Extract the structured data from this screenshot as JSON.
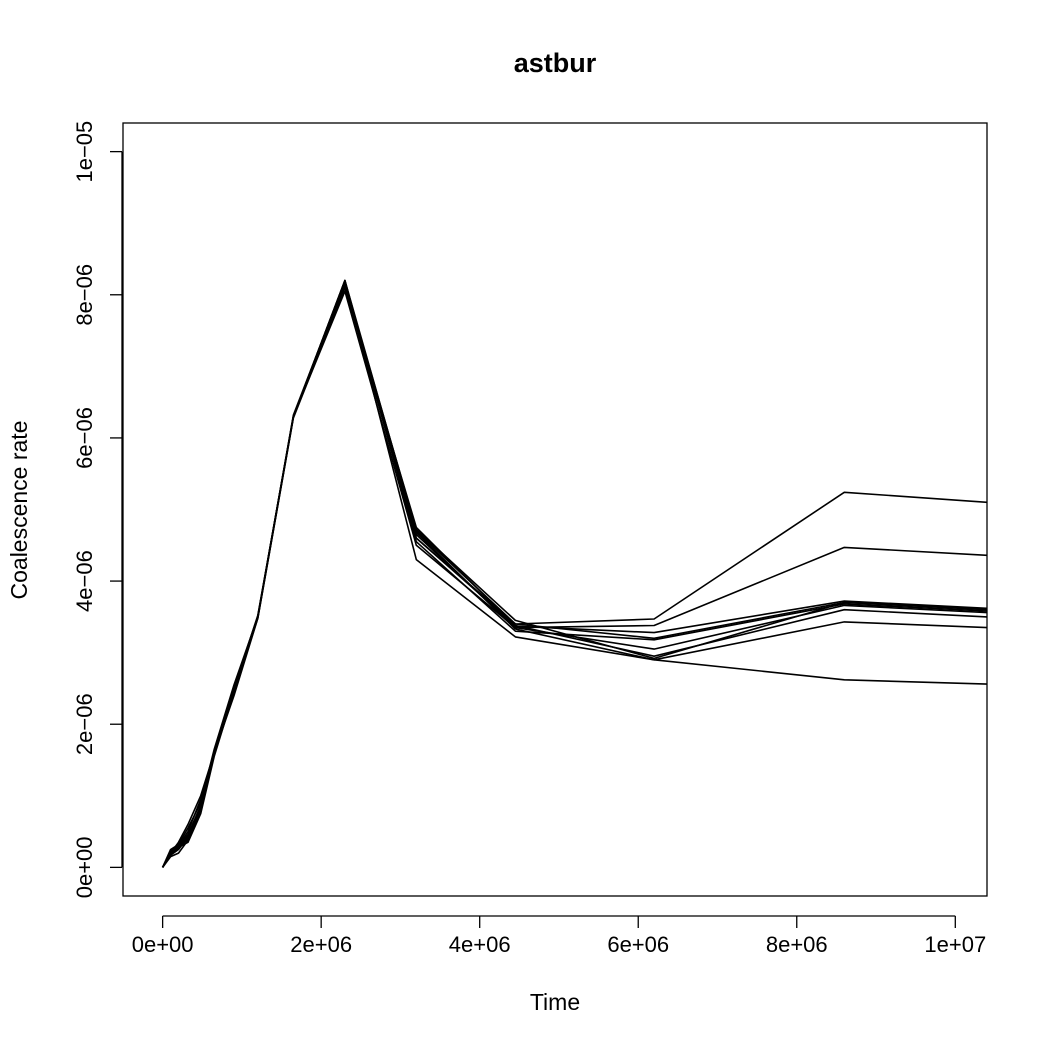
{
  "chart_data": {
    "type": "line",
    "title": "astbur",
    "xlabel": "Time",
    "ylabel": "Coalescence rate",
    "xlim": [
      -500000,
      10400000
    ],
    "ylim": [
      -4e-07,
      1.04e-05
    ],
    "x_ticks": [
      {
        "value": 0,
        "label": "0e+00"
      },
      {
        "value": 2000000,
        "label": "2e+06"
      },
      {
        "value": 4000000,
        "label": "4e+06"
      },
      {
        "value": 6000000,
        "label": "6e+06"
      },
      {
        "value": 8000000,
        "label": "8e+06"
      },
      {
        "value": 10000000,
        "label": "1e+07"
      }
    ],
    "y_ticks": [
      {
        "value": 0,
        "label": "0e+00"
      },
      {
        "value": 2e-06,
        "label": "2e−06"
      },
      {
        "value": 4e-06,
        "label": "4e−06"
      },
      {
        "value": 6e-06,
        "label": "6e−06"
      },
      {
        "value": 8e-06,
        "label": "8e−06"
      },
      {
        "value": 1e-05,
        "label": "1e−05"
      }
    ],
    "grid": false,
    "legend": "none",
    "line_color": "#000000",
    "x": [
      0,
      100000,
      200000,
      320000,
      480000,
      650000,
      900000,
      1200000,
      1650000,
      2300000,
      3200000,
      4450000,
      6200000,
      8600000,
      10400000
    ],
    "series": [
      {
        "values": [
          0,
          2e-07,
          3e-07,
          4e-07,
          8e-07,
          1.6e-06,
          2.5e-06,
          3.5e-06,
          6.3e-06,
          8.2e-06,
          4.6e-06,
          3.4e-06,
          3.47e-06,
          5.24e-06,
          5.1e-06
        ]
      },
      {
        "values": [
          0,
          1.8e-07,
          2.8e-07,
          3.5e-07,
          7.5e-07,
          1.55e-06,
          2.45e-06,
          3.5e-06,
          6.3e-06,
          8.15e-06,
          4.65e-06,
          3.35e-06,
          3.38e-06,
          4.47e-06,
          4.36e-06
        ]
      },
      {
        "values": [
          0,
          2.2e-07,
          2.7e-07,
          4.5e-07,
          8.5e-07,
          1.6e-06,
          2.4e-06,
          3.48e-06,
          6.28e-06,
          8.1e-06,
          4.75e-06,
          3.37e-06,
          3.28e-06,
          3.72e-06,
          3.62e-06
        ]
      },
      {
        "values": [
          0,
          1.5e-07,
          2e-07,
          3.8e-07,
          8e-07,
          1.58e-06,
          2.5e-06,
          3.52e-06,
          6.3e-06,
          8.2e-06,
          4.7e-06,
          3.4e-06,
          3.2e-06,
          3.7e-06,
          3.6e-06
        ]
      },
      {
        "values": [
          0,
          2.5e-07,
          3.2e-07,
          5.5e-07,
          9e-07,
          1.65e-06,
          2.55e-06,
          3.5e-06,
          6.32e-06,
          8.18e-06,
          4.55e-06,
          3.3e-06,
          3.18e-06,
          3.68e-06,
          3.58e-06
        ]
      },
      {
        "values": [
          0,
          2e-07,
          3.5e-07,
          6e-07,
          1e-06,
          1.6e-06,
          2.45e-06,
          3.48e-06,
          6.3e-06,
          8.05e-06,
          4.5e-06,
          3.35e-06,
          3.05e-06,
          3.66e-06,
          3.56e-06
        ]
      },
      {
        "values": [
          0,
          1.7e-07,
          2.5e-07,
          4.2e-07,
          8.2e-07,
          1.62e-06,
          2.48e-06,
          3.5e-06,
          6.3e-06,
          8.12e-06,
          4.6e-06,
          3.38e-06,
          2.95e-06,
          3.6e-06,
          3.5e-06
        ]
      },
      {
        "values": [
          0,
          2.3e-07,
          3e-07,
          5e-07,
          9.5e-07,
          1.6e-06,
          2.5e-06,
          3.5e-06,
          6.3e-06,
          8.15e-06,
          4.68e-06,
          3.33e-06,
          2.9e-06,
          3.43e-06,
          3.35e-06
        ]
      },
      {
        "values": [
          0,
          1.9e-07,
          2.6e-07,
          4e-07,
          8e-07,
          1.6e-06,
          2.5e-06,
          3.5e-06,
          6.3e-06,
          8.2e-06,
          4.3e-06,
          3.22e-06,
          2.9e-06,
          2.62e-06,
          2.56e-06
        ]
      },
      {
        "values": [
          0,
          2.1e-07,
          2.9e-07,
          4.6e-07,
          8.6e-07,
          1.6e-06,
          2.5e-06,
          3.5e-06,
          6.3e-06,
          8.17e-06,
          4.72e-06,
          3.45e-06,
          2.92e-06,
          3.7e-06,
          3.61e-06
        ]
      }
    ]
  }
}
